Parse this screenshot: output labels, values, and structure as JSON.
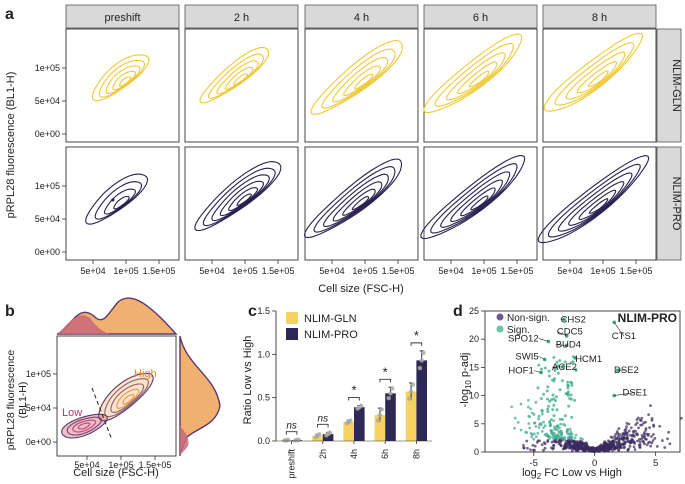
{
  "panel_a": {
    "letter": "a",
    "columns": [
      "preshift",
      "2 h",
      "4 h",
      "6 h",
      "8 h"
    ],
    "rows": [
      "NLIM-GLN",
      "NLIM-PRO"
    ],
    "ylabel": "pRPL28 fluorescence (BL1-H)",
    "xlabel": "Cell size (FSC-H)",
    "yticks": [
      "0e+00",
      "5e+04",
      "1e+05"
    ],
    "xticks": [
      "5e+04",
      "1e+05",
      "1.5e+05"
    ]
  },
  "panel_b": {
    "letter": "b",
    "ylabel_line1": "pRPL28 fluorescence",
    "ylabel_line2": "(BL1-H)",
    "xlabel": "Cell size (FSC-H)",
    "yticks": [
      "0e+00",
      "5e+04",
      "1e+05"
    ],
    "xticks": [
      "5e+04",
      "1e+05",
      "1.5e+05"
    ],
    "label_low": "Low",
    "label_high": "High",
    "colors": {
      "low": "#c0466a",
      "high": "#f0a850",
      "outline": "#5a3a6e"
    }
  },
  "panel_c": {
    "letter": "c",
    "ylabel": "Ratio Low vs High",
    "legend": [
      "NLIM-GLN",
      "NLIM-PRO"
    ],
    "significance": [
      "ns",
      "ns",
      "*",
      "*",
      "*"
    ],
    "colors": {
      "gln": "#f5d35e",
      "pro": "#2e2856"
    },
    "chart_data": {
      "type": "bar",
      "categories": [
        "preshift",
        "2h",
        "4h",
        "6h",
        "8h"
      ],
      "series": [
        {
          "name": "NLIM-GLN",
          "values": [
            0.01,
            0.06,
            0.22,
            0.3,
            0.57
          ],
          "errors": [
            0.005,
            0.02,
            0.02,
            0.08,
            0.1
          ]
        },
        {
          "name": "NLIM-PRO",
          "values": [
            0.01,
            0.08,
            0.39,
            0.55,
            0.93
          ],
          "errors": [
            0.005,
            0.02,
            0.02,
            0.07,
            0.11
          ]
        }
      ],
      "ylabel": "Ratio Low vs High",
      "ylim": [
        0,
        1.5
      ],
      "yticks": [
        "0.0",
        "0.5",
        "1.0",
        "1.5"
      ]
    }
  },
  "panel_d": {
    "letter": "d",
    "title": "NLIM-PRO",
    "ylabel": "-log10 p-adj",
    "xlabel": "log2 FC Low vs High",
    "legend": [
      "Non-sign.",
      "Sign."
    ],
    "colors": {
      "nonsig": "#3a2a5e",
      "sig": "#3aaa8a"
    },
    "chart_data": {
      "type": "scatter",
      "xlim": [
        -9,
        7
      ],
      "ylim": [
        0,
        25
      ],
      "xticks": [
        "-5",
        "0",
        "5"
      ],
      "yticks": [
        "0",
        "5",
        "10",
        "15",
        "20",
        "25"
      ],
      "genes": [
        {
          "name": "CHS2",
          "x": -2.5,
          "y": 23.5
        },
        {
          "name": "CDC5",
          "x": -2.3,
          "y": 20.6
        },
        {
          "name": "SPO12",
          "x": -3.8,
          "y": 19.6
        },
        {
          "name": "BUD4",
          "x": -2.3,
          "y": 18.9
        },
        {
          "name": "CTS1",
          "x": 1.6,
          "y": 23.0
        },
        {
          "name": "HCM1",
          "x": -1.6,
          "y": 16.7
        },
        {
          "name": "SWI5",
          "x": -4.1,
          "y": 16.4
        },
        {
          "name": "ACE2",
          "x": -2.6,
          "y": 15.1
        },
        {
          "name": "HOF1",
          "x": -4.4,
          "y": 14.1
        },
        {
          "name": "DSE2",
          "x": 1.9,
          "y": 14.5
        },
        {
          "name": "DSE1",
          "x": 1.6,
          "y": 10.0
        }
      ]
    }
  }
}
